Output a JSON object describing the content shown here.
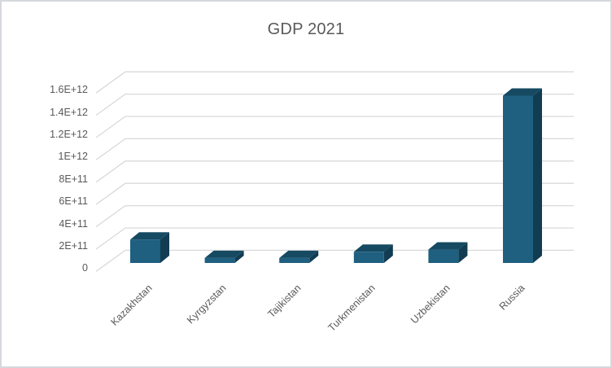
{
  "chart_data": {
    "type": "bar",
    "style": "3d-column",
    "title": "GDP 2021",
    "categories": [
      "Kazakhstan",
      "Kyrgyzstan",
      "Tajikistan",
      "Turkmenistan",
      "Uzbekistan",
      "Russia"
    ],
    "values": [
      210000000000.0,
      45000000000.0,
      45000000000.0,
      100000000000.0,
      120000000000.0,
      1500000000000.0
    ],
    "xlabel": "",
    "ylabel": "",
    "ylim": [
      0,
      1600000000000.0
    ],
    "ytick_step": 200000000000.0,
    "ytick_labels": [
      "0",
      "2E+11",
      "4E+11",
      "6E+11",
      "8E+11",
      "1E+12",
      "1.2E+12",
      "1.4E+12",
      "1.6E+12"
    ],
    "grid": true,
    "legend": false,
    "colors": {
      "bar_front": "#1f5f7f",
      "bar_top": "#154a62",
      "bar_side": "#123c52",
      "gridline": "#d9d9d9",
      "text": "#595959",
      "frame_border": "#d5d8dc",
      "background": "#ffffff"
    }
  }
}
